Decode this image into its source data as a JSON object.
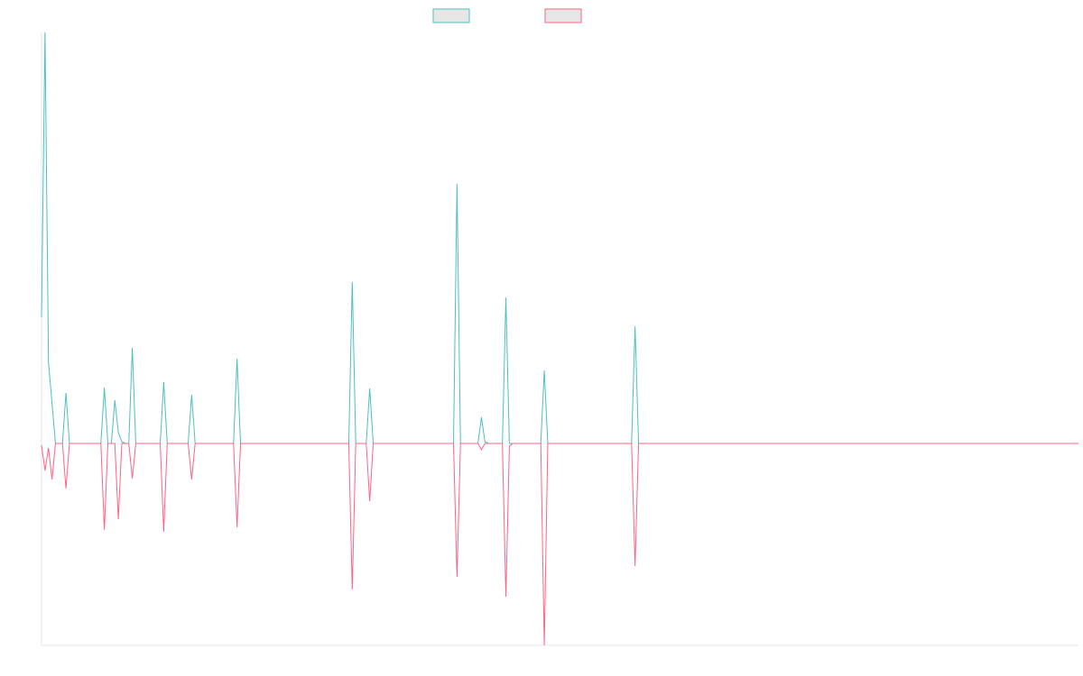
{
  "chart_data": {
    "type": "line",
    "x": [
      0,
      1,
      2,
      3,
      4,
      6,
      7,
      8,
      17,
      18,
      19,
      20,
      21,
      22,
      23,
      24,
      25,
      26,
      27,
      34,
      35,
      36,
      42,
      43,
      44,
      55,
      56,
      57,
      88,
      89,
      90,
      93,
      94,
      95,
      118,
      119,
      120,
      125,
      126,
      127,
      128,
      132,
      133,
      134,
      135,
      143,
      144,
      145,
      169,
      170,
      171,
      297
    ],
    "series": [
      {
        "color": "#4bc0c0",
        "values": [
          140,
          456,
          90,
          45,
          0,
          0,
          56,
          0,
          0,
          62,
          0,
          0,
          48,
          12,
          2,
          0,
          0,
          106,
          0,
          0,
          68,
          0,
          0,
          54,
          0,
          0,
          94,
          0,
          0,
          179,
          0,
          0,
          61,
          0,
          0,
          288,
          0,
          0,
          29,
          2,
          0,
          0,
          162,
          0,
          0,
          0,
          81,
          0,
          0,
          130,
          0,
          0
        ]
      },
      {
        "color": "#ff6384",
        "values": [
          -2,
          -30,
          -5,
          -40,
          0,
          0,
          -50,
          0,
          0,
          -96,
          0,
          0,
          0,
          -84,
          0,
          0,
          0,
          -39,
          0,
          0,
          -98,
          0,
          0,
          -40,
          0,
          0,
          -93,
          0,
          0,
          -162,
          0,
          0,
          -64,
          0,
          0,
          -148,
          0,
          0,
          -7,
          0,
          0,
          0,
          -170,
          -3,
          0,
          0,
          -224,
          0,
          0,
          -136,
          0,
          0
        ]
      }
    ],
    "xlim": [
      0,
      297
    ],
    "ylim": [
      -224,
      456
    ]
  }
}
